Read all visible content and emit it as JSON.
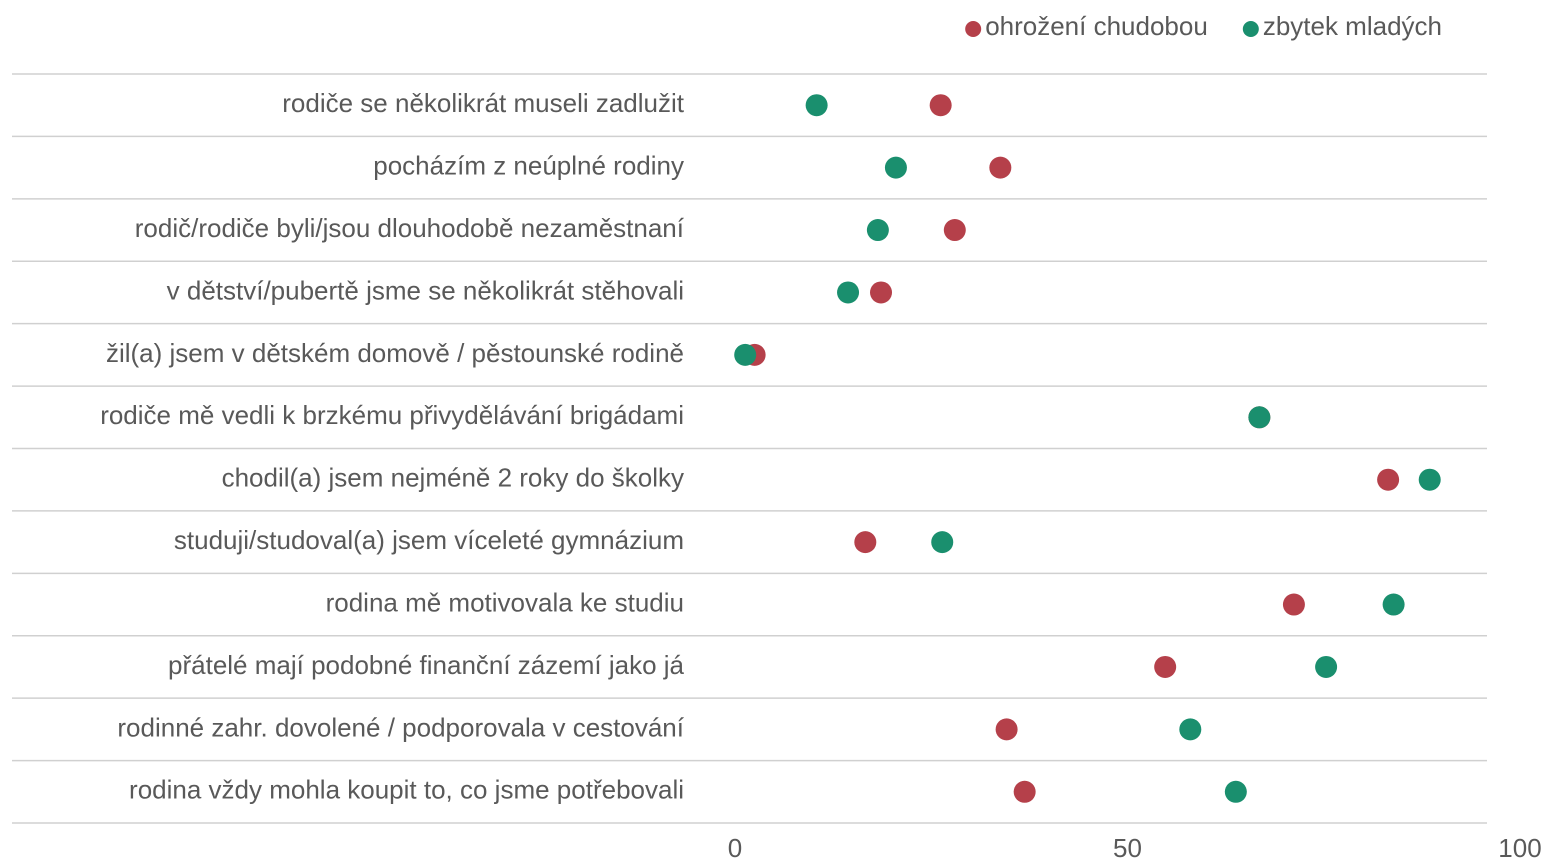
{
  "chart_data": {
    "type": "dot",
    "categories": [
      "rodiče se několikrát museli zadlužit",
      "pocházím z neúplné rodiny",
      "rodič/rodiče byli/jsou dlouhodobě nezaměstnaní",
      "v dětství/pubertě jsme se několikrát stěhovali",
      "žil(a) jsem v dětském domově / pěstounské rodině",
      "rodiče mě vedli k brzkému přivydělávání brigádami",
      "chodil(a) jsem nejméně 2 roky do školky",
      "studuji/studoval(a) jsem víceleté gymnázium",
      "rodina mě motivovala ke studiu",
      "přátelé mají podobné finanční zázemí jako já",
      "rodinné zahr. dovolené / podporovala v cestování",
      "rodina vždy mohla koupit to, co jsme potřebovali"
    ],
    "series": [
      {
        "name": "ohrožení chudobou",
        "color": "#b5404a",
        "values": [
          26.2,
          33.8,
          28,
          18.6,
          2.5,
          66.8,
          83.2,
          16.6,
          71.2,
          54.8,
          34.6,
          36.9
        ]
      },
      {
        "name": "zbytek mladých",
        "color": "#1a8f6e",
        "values": [
          10.4,
          20.5,
          18.2,
          14.4,
          1.3,
          66.8,
          88.5,
          26.4,
          83.9,
          75.3,
          58.0,
          63.8
        ]
      }
    ],
    "xlim": [
      0,
      100
    ],
    "xticks": [
      0,
      50,
      100
    ],
    "legend": "top-right",
    "grid": true
  }
}
